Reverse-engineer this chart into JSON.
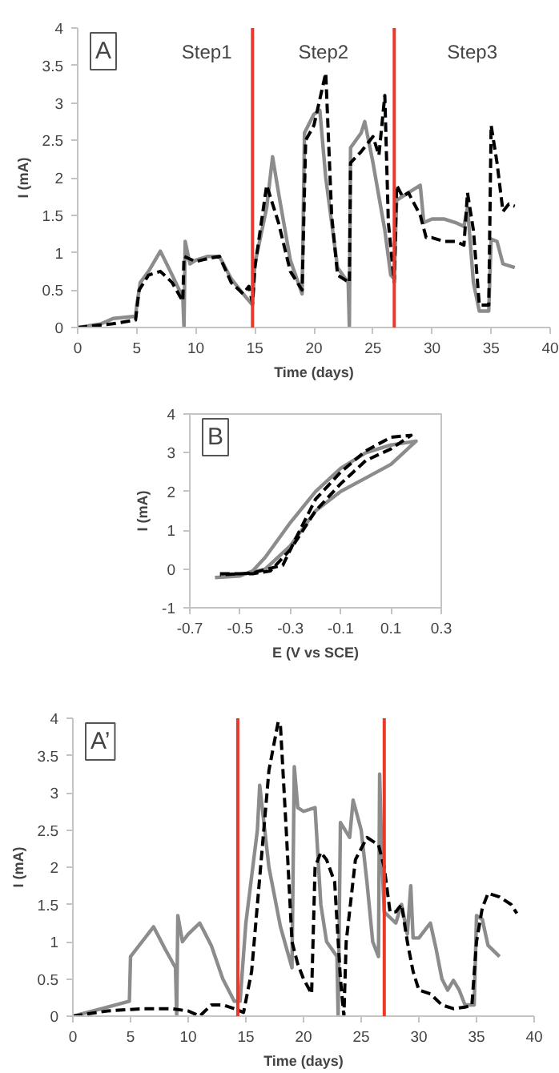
{
  "chart_data": [
    {
      "type": "line",
      "xlabel": "Time (days)",
      "ylabel": "I (mA)",
      "annotations": [
        "A",
        "Step1",
        "Step2",
        "Step3"
      ],
      "xlim": [
        0,
        40
      ],
      "xticks": [
        0,
        5,
        10,
        15,
        20,
        25,
        30,
        35,
        40
      ],
      "ylim": [
        0,
        4
      ],
      "yticks": [
        0,
        0.5,
        1,
        1.5,
        2,
        2.5,
        3,
        3.5,
        4
      ],
      "ref_lines": [
        {
          "axis": "x",
          "value": 14.8,
          "color": "#e8392c"
        },
        {
          "axis": "x",
          "value": 26.8,
          "color": "#e8392c"
        }
      ],
      "series": [
        {
          "color": "#8c8c8c",
          "line_style": "solid",
          "x": [
            0,
            2,
            3,
            4.9,
            5,
            5.3,
            6,
            7,
            8,
            8.9,
            9,
            9.1,
            9.5,
            10,
            11,
            12,
            13,
            14,
            14.8,
            15,
            16,
            16.5,
            17,
            18,
            19,
            19.2,
            20,
            20.5,
            21,
            22,
            22.9,
            23,
            23.1,
            24,
            24.3,
            25,
            26,
            26.5,
            26.8,
            27,
            28,
            29,
            29.3,
            30,
            31,
            32,
            32.7,
            33,
            33.5,
            34,
            34.8,
            35,
            35.5,
            36,
            37
          ],
          "values": [
            0,
            0.05,
            0.12,
            0.15,
            0.3,
            0.6,
            0.75,
            1.02,
            0.7,
            0.4,
            0,
            1.15,
            0.85,
            0.9,
            0.95,
            0.95,
            0.65,
            0.45,
            0.3,
            0.85,
            1.6,
            2.28,
            1.8,
            0.9,
            0.45,
            2.6,
            2.85,
            2.9,
            2,
            0.8,
            0.6,
            0,
            2.4,
            2.6,
            2.75,
            2.2,
            1.3,
            0.7,
            0.65,
            1.7,
            1.8,
            1.9,
            1.4,
            1.45,
            1.45,
            1.4,
            1.35,
            1.6,
            0.6,
            0.22,
            0.22,
            1.18,
            1.15,
            0.85,
            0.8
          ]
        },
        {
          "color": "#000000",
          "line_style": "dashed",
          "x": [
            0,
            3,
            4.9,
            5.2,
            6,
            7,
            8,
            8.9,
            9,
            10,
            11,
            12,
            13,
            14,
            14.5,
            14.8,
            15,
            16,
            17,
            18,
            19,
            19.3,
            20,
            21,
            21.5,
            22,
            23,
            23.1,
            24,
            25,
            25.5,
            26,
            26.3,
            26.8,
            27,
            27.5,
            28,
            29,
            29.5,
            30,
            31,
            32,
            32.7,
            33,
            33.5,
            34,
            34.8,
            35,
            35.5,
            36,
            36.5,
            37
          ],
          "values": [
            0,
            0.05,
            0.1,
            0.5,
            0.7,
            0.75,
            0.6,
            0.35,
            0.95,
            0.88,
            0.92,
            0.95,
            0.6,
            0.45,
            0.55,
            0.32,
            0.8,
            1.9,
            1.4,
            0.75,
            0.5,
            2.5,
            2.7,
            3.4,
            1.5,
            0.7,
            0.6,
            2.2,
            2.35,
            2.55,
            2.3,
            3.1,
            1.4,
            0.6,
            1.9,
            1.75,
            1.8,
            1.5,
            1.2,
            1.2,
            1.15,
            1.15,
            1.1,
            1.8,
            1.3,
            0.3,
            0.3,
            2.7,
            2.2,
            1.55,
            1.65,
            1.62
          ]
        }
      ]
    },
    {
      "type": "line",
      "xlabel": "E (V vs SCE)",
      "ylabel": "I (mA)",
      "annotations": [
        "B"
      ],
      "xlim": [
        -0.7,
        0.3
      ],
      "xticks": [
        -0.7,
        -0.5,
        -0.3,
        -0.1,
        0.1,
        0.3
      ],
      "ylim": [
        -1,
        4
      ],
      "yticks": [
        -1,
        0,
        1,
        2,
        3,
        4
      ],
      "series": [
        {
          "color": "#8c8c8c",
          "line_style": "solid",
          "x": [
            -0.6,
            -0.5,
            -0.45,
            -0.4,
            -0.3,
            -0.2,
            -0.1,
            0.0,
            0.1,
            0.2,
            0.1,
            0.0,
            -0.1,
            -0.2,
            -0.3,
            -0.4,
            -0.5,
            -0.58
          ],
          "values": [
            -0.22,
            -0.18,
            -0.05,
            0.3,
            1.2,
            2.0,
            2.6,
            3.0,
            3.2,
            3.3,
            2.7,
            2.35,
            2.0,
            1.5,
            0.6,
            0.0,
            -0.16,
            -0.2
          ]
        },
        {
          "color": "#000000",
          "line_style": "dashed",
          "x": [
            -0.58,
            -0.45,
            -0.38,
            -0.3,
            -0.2,
            -0.1,
            0.0,
            0.1,
            0.18,
            0.1,
            0.0,
            -0.1,
            -0.2,
            -0.27,
            -0.33,
            -0.45,
            -0.58
          ],
          "values": [
            -0.12,
            -0.12,
            -0.05,
            0.5,
            1.5,
            2.2,
            2.8,
            3.1,
            3.45,
            3.4,
            3.05,
            2.5,
            1.8,
            0.9,
            0.1,
            -0.1,
            -0.15
          ]
        }
      ]
    },
    {
      "type": "line",
      "xlabel": "Time (days)",
      "ylabel": "I (mA)",
      "annotations": [
        "A’"
      ],
      "xlim": [
        0,
        40
      ],
      "xticks": [
        0,
        5,
        10,
        15,
        20,
        25,
        30,
        35,
        40
      ],
      "ylim": [
        0,
        4
      ],
      "yticks": [
        0,
        0.5,
        1,
        1.5,
        2,
        2.5,
        3,
        3.5,
        4
      ],
      "ref_lines": [
        {
          "axis": "x",
          "value": 14.3,
          "color": "#e8392c"
        },
        {
          "axis": "x",
          "value": 27,
          "color": "#e8392c"
        }
      ],
      "series": [
        {
          "color": "#8c8c8c",
          "line_style": "solid",
          "x": [
            0,
            2.5,
            4.9,
            5,
            6,
            7,
            8,
            8.9,
            9,
            9.1,
            9.5,
            10,
            11,
            12,
            13,
            14,
            14.5,
            15,
            16,
            16.2,
            17,
            18,
            19,
            19.2,
            19.5,
            20,
            21,
            21.5,
            22,
            22.9,
            23,
            23.2,
            24,
            24.3,
            25,
            25.5,
            26,
            26.5,
            26.6,
            26.8,
            27,
            28,
            28.5,
            29,
            29.3,
            29.5,
            30,
            31,
            31.5,
            32,
            32.5,
            33,
            33.5,
            34,
            34.8,
            35,
            35.5,
            36,
            37
          ],
          "values": [
            0,
            0.1,
            0.2,
            0.8,
            1.0,
            1.2,
            0.9,
            0.65,
            0,
            1.35,
            1.0,
            1.1,
            1.25,
            0.95,
            0.5,
            0.2,
            0.2,
            1.25,
            2.5,
            3.1,
            2.0,
            1.2,
            0.65,
            3.35,
            2.8,
            2.75,
            2.8,
            1.5,
            1.0,
            0.8,
            0,
            2.6,
            2.4,
            2.9,
            2.5,
            1.8,
            1.0,
            0.8,
            3.25,
            2.1,
            1.4,
            1.25,
            1.5,
            1.1,
            1.75,
            1.05,
            1.05,
            1.25,
            0.9,
            0.5,
            0.35,
            0.48,
            0.35,
            0.15,
            0.15,
            1.35,
            1.3,
            0.95,
            0.8
          ]
        },
        {
          "color": "#000000",
          "line_style": "dashed",
          "x": [
            0,
            3,
            6,
            8.5,
            10,
            11,
            12,
            13,
            14,
            14.8,
            15.5,
            16,
            17,
            17.8,
            18,
            18.5,
            19,
            19.5,
            20,
            20.7,
            21,
            21.5,
            22,
            22.7,
            23.2,
            23.5,
            23.7,
            24.5,
            25.5,
            26.5,
            27,
            27.5,
            28,
            28.5,
            29,
            29.5,
            30,
            31,
            32,
            33,
            34,
            34.6,
            35,
            35.5,
            36,
            37,
            38,
            38.5
          ],
          "values": [
            0,
            0.07,
            0.1,
            0.1,
            0.07,
            0,
            0.15,
            0.15,
            0.1,
            0.05,
            0.6,
            1.5,
            3.3,
            3.95,
            3.9,
            2.5,
            1.0,
            0.7,
            0.5,
            0.3,
            2.0,
            2.2,
            2.1,
            1.8,
            0.5,
            0,
            1.0,
            2.1,
            2.4,
            2.3,
            2.0,
            1.4,
            1.4,
            1.5,
            1.0,
            0.6,
            0.35,
            0.3,
            0.15,
            0.1,
            0.12,
            0.15,
            1.0,
            1.45,
            1.65,
            1.6,
            1.5,
            1.38
          ]
        }
      ]
    }
  ]
}
